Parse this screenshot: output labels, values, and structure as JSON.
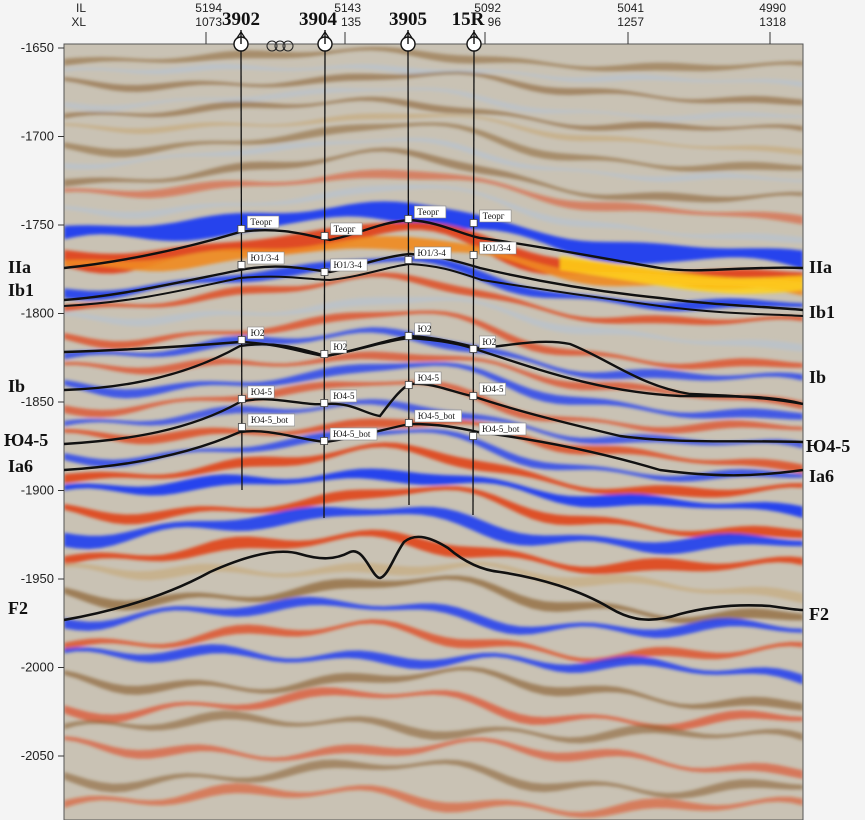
{
  "header": {
    "il_label": "IL",
    "xl_label": "XL",
    "ilxl_ticks": [
      {
        "il": "5194",
        "xl": "1073"
      },
      {
        "il": "5143",
        "xl": "135"
      },
      {
        "il": "5092",
        "xl": "96"
      },
      {
        "il": "5041",
        "xl": "1257"
      },
      {
        "il": "4990",
        "xl": "1318"
      }
    ]
  },
  "time_axis": {
    "range": [
      -2075,
      -1650
    ],
    "ticks": [
      "-1650",
      "-1700",
      "-1750",
      "-1800",
      "-1850",
      "-1900",
      "-1950",
      "-2000",
      "-2050"
    ]
  },
  "wells": [
    {
      "name": "3902",
      "picks": [
        "Теорг",
        "Ю1/3-4",
        "Ю2",
        "Ю4-5",
        "Ю4-5_bot"
      ]
    },
    {
      "name": "3904",
      "picks": [
        "Теорг",
        "Ю1/3-4",
        "Ю2",
        "Ю4-5",
        "Ю4-5_bot"
      ]
    },
    {
      "name": "3905",
      "picks": [
        "Теорг",
        "Ю1/3-4",
        "Ю2",
        "Ю4-5",
        "Ю4-5_bot"
      ]
    },
    {
      "name": "15R",
      "picks": [
        "Теорг",
        "Ю1/3-4",
        "Ю2",
        "Ю4-5",
        "Ю4-5_bot"
      ]
    }
  ],
  "horizons": [
    {
      "id": "IIa",
      "left_label": "IIa",
      "right_label": "IIa"
    },
    {
      "id": "Ib1",
      "left_label": "Ib1",
      "right_label": "Ib1"
    },
    {
      "id": "Ib",
      "left_label": "Ib",
      "right_label": "Ib"
    },
    {
      "id": "IO4-5",
      "left_label": "Ю4-5",
      "right_label": "Ю4-5"
    },
    {
      "id": "Ia6",
      "left_label": "Ia6",
      "right_label": "Ia6"
    },
    {
      "id": "F2",
      "left_label": "F2",
      "right_label": "F2"
    }
  ],
  "colors": {
    "blue": "#1f3df0",
    "red": "#e0441a",
    "orange": "#f08a20",
    "brown": "#8a6030",
    "tan": "#c7ae84",
    "grey": "#b9c2cc",
    "horizon": "#111111"
  }
}
